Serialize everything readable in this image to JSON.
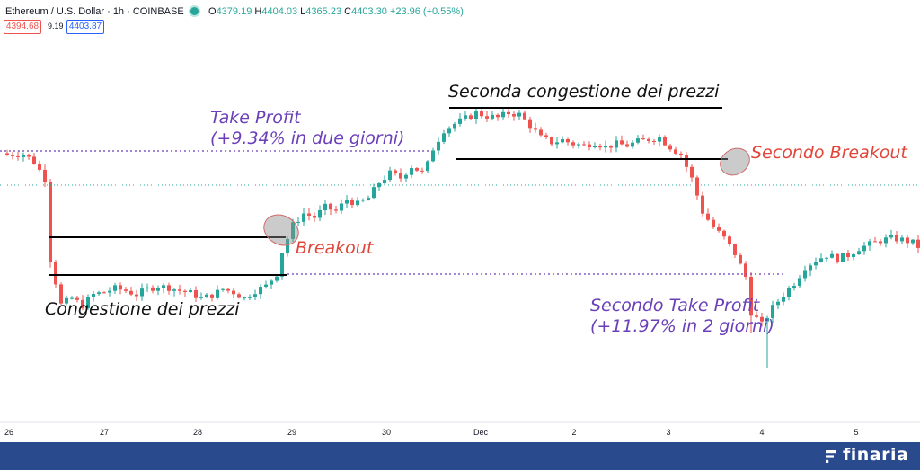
{
  "header": {
    "symbol": "Ethereum / U.S. Dollar · 1h · COINBASE",
    "ohlc": {
      "o_label": "O",
      "o": "4379.19",
      "h_label": "H",
      "h": "4404.03",
      "l_label": "L",
      "l": "4365.23",
      "c_label": "C",
      "c": "4403.30",
      "change": "+23.96 (+0.55%)"
    },
    "bid": "4394.68",
    "spread": "9.19",
    "ask": "4403.87",
    "live_color": "#26a69a"
  },
  "annotations": {
    "congestion_1": "Congestione dei prezzi",
    "breakout_1": "Breakout",
    "take_profit_1_line1": "Take Profit",
    "take_profit_1_line2": "(+9.34% in due giorni)",
    "congestion_2": "Seconda congestione dei prezzi",
    "breakout_2": "Secondo Breakout",
    "take_profit_2_line1": "Secondo Take Profit",
    "take_profit_2_line2": "(+11.97% in 2 giorni)"
  },
  "colors": {
    "up": "#26a69a",
    "down": "#ef5350",
    "take_profit": "#6a3fb8",
    "breakout": "#e0453a",
    "range_line": "#000000",
    "footer": "#2a4a8e"
  },
  "chart_data": {
    "type": "candlestick",
    "instrument": "Ethereum / U.S. Dollar",
    "timeframe": "1h",
    "exchange": "COINBASE",
    "x_ticks": [
      "26",
      "27",
      "28",
      "29",
      "30",
      "Dec",
      "2",
      "3",
      "4",
      "5"
    ],
    "series_close_path": [
      [
        0,
        4436
      ],
      [
        3,
        4437
      ],
      [
        5,
        4427
      ],
      [
        7,
        4405
      ],
      [
        8,
        4300
      ],
      [
        10,
        4242
      ],
      [
        12,
        4250
      ],
      [
        14,
        4241
      ],
      [
        16,
        4255
      ],
      [
        18,
        4258
      ],
      [
        20,
        4263
      ],
      [
        22,
        4260
      ],
      [
        24,
        4255
      ],
      [
        26,
        4262
      ],
      [
        28,
        4266
      ],
      [
        30,
        4264
      ],
      [
        32,
        4260
      ],
      [
        34,
        4257
      ],
      [
        36,
        4250
      ],
      [
        38,
        4254
      ],
      [
        40,
        4262
      ],
      [
        42,
        4258
      ],
      [
        44,
        4250
      ],
      [
        46,
        4260
      ],
      [
        48,
        4266
      ],
      [
        50,
        4282
      ],
      [
        51,
        4310
      ],
      [
        53,
        4345
      ],
      [
        55,
        4360
      ],
      [
        57,
        4355
      ],
      [
        59,
        4368
      ],
      [
        61,
        4363
      ],
      [
        63,
        4378
      ],
      [
        65,
        4372
      ],
      [
        67,
        4380
      ],
      [
        69,
        4400
      ],
      [
        71,
        4412
      ],
      [
        73,
        4406
      ],
      [
        75,
        4421
      ],
      [
        77,
        4413
      ],
      [
        78,
        4424
      ],
      [
        79,
        4444
      ],
      [
        81,
        4468
      ],
      [
        83,
        4476
      ],
      [
        85,
        4483
      ],
      [
        87,
        4490
      ],
      [
        89,
        4486
      ],
      [
        91,
        4484
      ],
      [
        93,
        4490
      ],
      [
        95,
        4488
      ],
      [
        97,
        4474
      ],
      [
        99,
        4458
      ],
      [
        101,
        4452
      ],
      [
        103,
        4455
      ],
      [
        105,
        4450
      ],
      [
        107,
        4448
      ],
      [
        109,
        4452
      ],
      [
        111,
        4446
      ],
      [
        113,
        4450
      ],
      [
        115,
        4448
      ],
      [
        117,
        4453
      ],
      [
        119,
        4456
      ],
      [
        121,
        4458
      ],
      [
        123,
        4446
      ],
      [
        125,
        4436
      ],
      [
        127,
        4405
      ],
      [
        129,
        4362
      ],
      [
        131,
        4342
      ],
      [
        133,
        4328
      ],
      [
        135,
        4308
      ],
      [
        137,
        4278
      ],
      [
        138,
        4232
      ],
      [
        140,
        4216
      ],
      [
        142,
        4238
      ],
      [
        144,
        4255
      ],
      [
        146,
        4270
      ],
      [
        148,
        4290
      ],
      [
        150,
        4300
      ],
      [
        152,
        4306
      ],
      [
        154,
        4302
      ],
      [
        156,
        4306
      ],
      [
        158,
        4315
      ],
      [
        160,
        4320
      ],
      [
        162,
        4325
      ],
      [
        164,
        4328
      ],
      [
        166,
        4326
      ],
      [
        168,
        4322
      ],
      [
        170,
        4312
      ]
    ],
    "levels": {
      "congestion_1_top": 4268,
      "congestion_1_bottom": 4239,
      "congestion_2_top": 4502,
      "congestion_2_bottom": 4444,
      "take_profit_1": 4455,
      "take_profit_2": 4240
    }
  }
}
